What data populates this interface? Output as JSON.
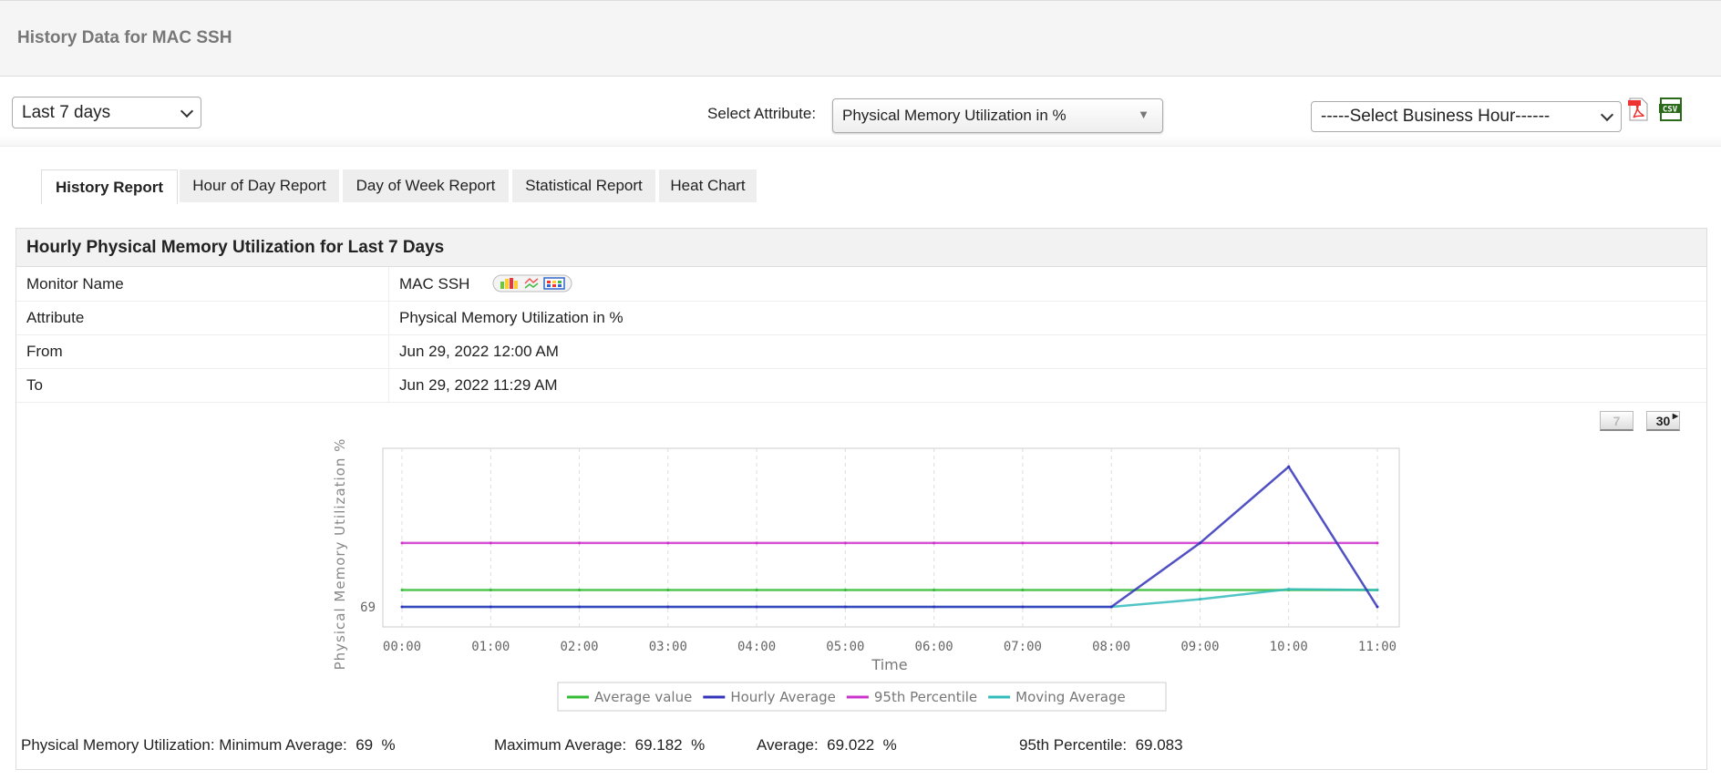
{
  "header": {
    "title": "History Data for MAC SSH"
  },
  "toolbar": {
    "period_select": "Last 7 days",
    "attribute_label": "Select Attribute:",
    "attribute_select": "Physical Memory Utilization in %",
    "business_hour_select": "-----Select Business Hour------",
    "pdf_icon": "pdf-icon",
    "csv_icon": "csv-icon"
  },
  "tabs": [
    {
      "label": "History Report",
      "active": true
    },
    {
      "label": "Hour of Day Report"
    },
    {
      "label": "Day of Week Report"
    },
    {
      "label": "Statistical Report"
    },
    {
      "label": "Heat Chart"
    }
  ],
  "panel": {
    "title": "Hourly Physical Memory Utilization for Last 7 Days",
    "rows": [
      {
        "key": "Monitor Name",
        "value": "MAC SSH"
      },
      {
        "key": "Attribute",
        "value": "Physical Memory Utilization in %"
      },
      {
        "key": "From",
        "value": "Jun 29, 2022 12:00 AM"
      },
      {
        "key": "To",
        "value": "Jun 29, 2022 11:29 AM"
      }
    ],
    "range_buttons": [
      "7",
      "30"
    ]
  },
  "chart_data": {
    "type": "line",
    "xlabel": "Time",
    "ylabel": "Physical Memory Utilization %",
    "categories": [
      "00:00",
      "01:00",
      "02:00",
      "03:00",
      "04:00",
      "05:00",
      "06:00",
      "07:00",
      "08:00",
      "09:00",
      "10:00",
      "11:00"
    ],
    "yticks": [
      "69"
    ],
    "ylim": [
      68.974,
      69.206
    ],
    "grid": true,
    "legend_position": "bottom",
    "series": [
      {
        "name": "Average value",
        "color": "#33bb33",
        "values": [
          69.022,
          69.022,
          69.022,
          69.022,
          69.022,
          69.022,
          69.022,
          69.022,
          69.022,
          69.022,
          69.022,
          69.022
        ]
      },
      {
        "name": "Hourly Average",
        "color": "#3333bb",
        "values": [
          69,
          69,
          69,
          69,
          69,
          69,
          69,
          69,
          69,
          69.083,
          69.182,
          69
        ]
      },
      {
        "name": "95th Percentile",
        "color": "#cc33cc",
        "values": [
          69.083,
          69.083,
          69.083,
          69.083,
          69.083,
          69.083,
          69.083,
          69.083,
          69.083,
          69.083,
          69.083,
          69.083
        ]
      },
      {
        "name": "Moving Average",
        "color": "#33bbbb",
        "values": [
          69,
          69,
          69,
          69,
          69,
          69,
          69,
          69,
          69,
          69.01,
          69.023,
          69.022
        ]
      }
    ]
  },
  "stats": {
    "min": "Physical Memory Utilization: Minimum Average:  69  %",
    "max": "Maximum Average:  69.182  %",
    "avg": "Average:  69.022  %",
    "p95": "95th Percentile:  69.083"
  }
}
